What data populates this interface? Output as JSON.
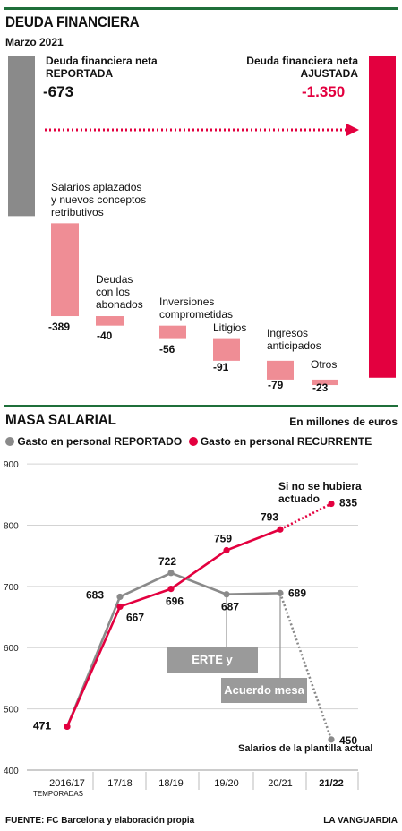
{
  "section1": {
    "title": "DEUDA FINANCIERA",
    "subtitle": "Marzo 2021",
    "reported": {
      "label_line1": "Deuda financiera neta",
      "label_line2": "REPORTADA",
      "value": "-673"
    },
    "adjusted": {
      "label_line1": "Deuda financiera neta",
      "label_line2": "AJUSTADA",
      "value": "-1.350"
    }
  },
  "section2": {
    "title": "MASA SALARIAL",
    "unit": "En millones de euros",
    "legend_reported": "Gasto en personal REPORTADO",
    "legend_recurrent": "Gasto en personal RECURRENTE",
    "note_forecast": "Si no se hubiera actuado",
    "note_actual": "Salarios de la plantilla actual",
    "callout_erte": "ERTE y acuerdos",
    "callout_mesa": "Acuerdo mesa",
    "axis_caption": "TEMPORADAS"
  },
  "footer": {
    "source": "FUENTE: FC Barcelona y elaboración propia",
    "brand": "LA VANGUARDIA"
  },
  "colors": {
    "gray": "#8a8a8a",
    "red": "#e3003f",
    "pink": "#ef8d95",
    "green": "#1f6f3a"
  },
  "chart_data": [
    {
      "type": "bar",
      "title": "DEUDA FINANCIERA",
      "subtitle": "Marzo 2021",
      "categories": [
        "Deuda financiera neta REPORTADA",
        "Salarios aplazados y nuevos conceptos retributivos",
        "Deudas con los abonados",
        "Inversiones comprometidas",
        "Litigios",
        "Ingresos anticipados",
        "Otros",
        "Deuda financiera neta AJUSTADA"
      ],
      "values": [
        -673,
        -389,
        -40,
        -56,
        -91,
        -79,
        -23,
        -1350
      ],
      "value_labels": [
        "-673",
        "-389",
        "-40",
        "-56",
        "-91",
        "-79",
        "-23",
        "-1.350"
      ],
      "adjustments": [
        {
          "label_lines": [
            "Salarios aplazados",
            "y nuevos conceptos",
            "retributivos"
          ],
          "value": -389,
          "value_label": "-389"
        },
        {
          "label_lines": [
            "Deudas",
            "con los",
            "abonados"
          ],
          "value": -40,
          "value_label": "-40"
        },
        {
          "label_lines": [
            "Inversiones",
            "comprometidas"
          ],
          "value": -56,
          "value_label": "-56"
        },
        {
          "label_lines": [
            "Litigios"
          ],
          "value": -91,
          "value_label": "-91"
        },
        {
          "label_lines": [
            "Ingresos",
            "anticipados"
          ],
          "value": -79,
          "value_label": "-79"
        },
        {
          "label_lines": [
            "Otros"
          ],
          "value": -23,
          "value_label": "-23"
        }
      ]
    },
    {
      "type": "line",
      "title": "MASA SALARIAL",
      "ylabel": "En millones de euros",
      "categories": [
        "2016/17",
        "17/18",
        "18/19",
        "19/20",
        "20/21",
        "21/22"
      ],
      "ylim": [
        400,
        900
      ],
      "yticks": [
        400,
        500,
        600,
        700,
        800,
        900
      ],
      "grid": true,
      "series": [
        {
          "name": "Gasto en personal REPORTADO",
          "color": "#8a8a8a",
          "values": [
            471,
            683,
            722,
            687,
            689,
            450
          ]
        },
        {
          "name": "Gasto en personal RECURRENTE",
          "color": "#e3003f",
          "values": [
            471,
            667,
            696,
            759,
            793,
            835
          ]
        }
      ]
    }
  ]
}
